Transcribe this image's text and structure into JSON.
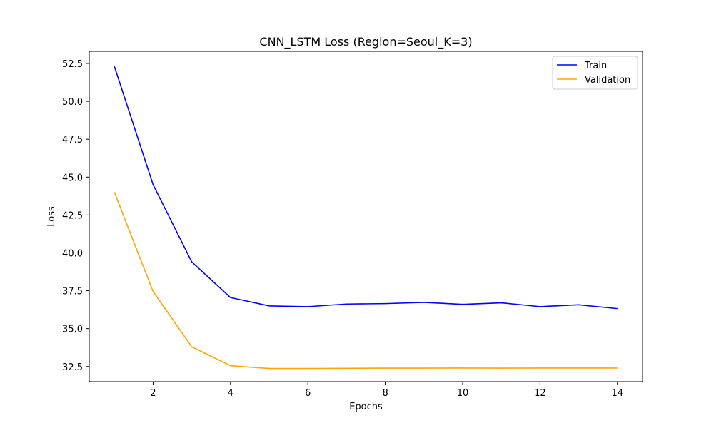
{
  "chart_data": {
    "type": "line",
    "title": "CNN_LSTM Loss (Region=Seoul_K=3)",
    "xlabel": "Epochs",
    "ylabel": "Loss",
    "x": [
      1,
      2,
      3,
      4,
      5,
      6,
      7,
      8,
      9,
      10,
      11,
      12,
      13,
      14
    ],
    "xlim": [
      0.35,
      14.65
    ],
    "ylim": [
      31.5,
      53.3
    ],
    "xticks": [
      2,
      4,
      6,
      8,
      10,
      12,
      14
    ],
    "yticks": [
      32.5,
      35.0,
      37.5,
      40.0,
      42.5,
      45.0,
      47.5,
      50.0,
      52.5
    ],
    "ytick_labels": [
      "32.5",
      "35.0",
      "37.5",
      "40.0",
      "42.5",
      "45.0",
      "47.5",
      "50.0",
      "52.5"
    ],
    "grid": false,
    "legend_position": "top-right",
    "series": [
      {
        "name": "Train",
        "color": "#0000ff",
        "values": [
          52.3,
          44.5,
          39.4,
          37.05,
          36.5,
          36.45,
          36.62,
          36.65,
          36.73,
          36.6,
          36.7,
          36.45,
          36.57,
          36.32
        ]
      },
      {
        "name": "Validation",
        "color": "#ffa500",
        "values": [
          44.0,
          37.45,
          33.8,
          32.55,
          32.37,
          32.37,
          32.38,
          32.39,
          32.39,
          32.4,
          32.39,
          32.4,
          32.4,
          32.4
        ]
      }
    ]
  }
}
